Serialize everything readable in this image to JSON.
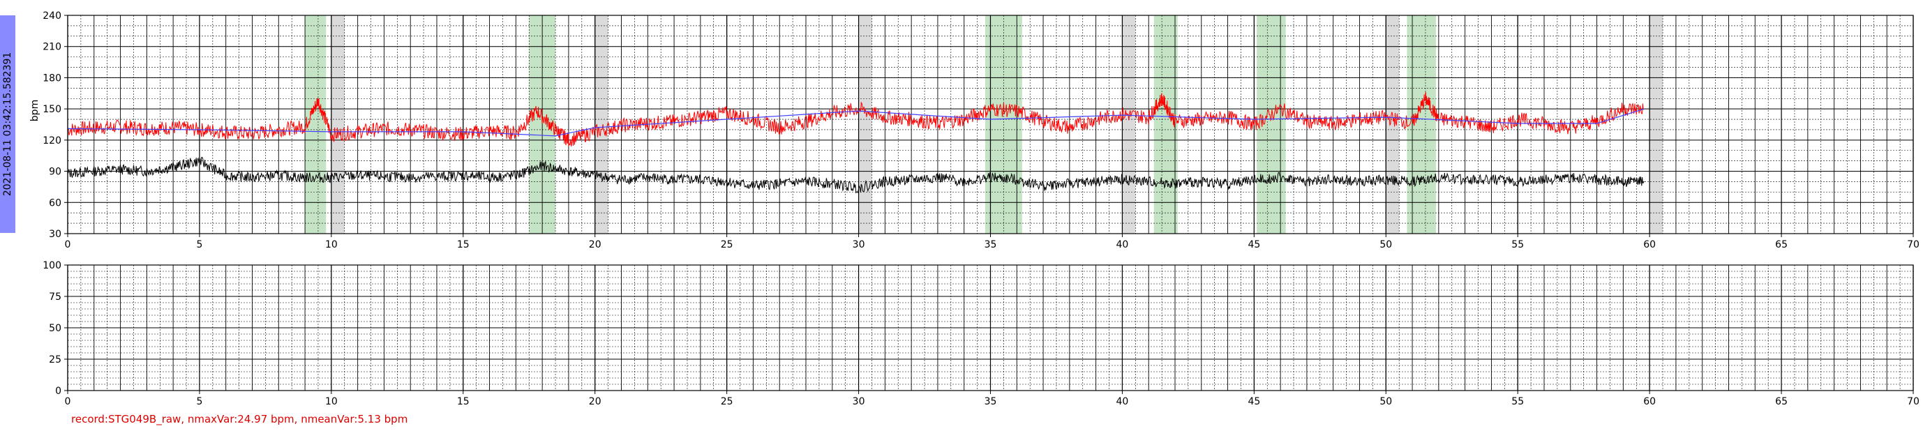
{
  "timestamp_label": "2021-08-11 03:42:15.582391",
  "footer_text": "record:STG049B_raw, nmaxVar:24.97 bpm, nmeanVar:5.13 bpm",
  "colors": {
    "fhr": "#ff0000",
    "mhr": "#000000",
    "baseline": "#4040ff",
    "acceleration": "#2e9e2e",
    "gap": "#999999",
    "side_bar": "#8a8aff",
    "footer": "#e00000"
  },
  "chart_data": [
    {
      "type": "line",
      "ylabel": "bpm",
      "xlim": [
        0,
        70
      ],
      "ylim": [
        30,
        240
      ],
      "xticks": [
        0,
        5,
        10,
        15,
        20,
        25,
        30,
        35,
        40,
        45,
        50,
        55,
        60,
        65,
        70
      ],
      "yticks": [
        30,
        60,
        90,
        120,
        150,
        180,
        210,
        240
      ],
      "grid": true,
      "acceleration_regions": [
        [
          9.0,
          9.8
        ],
        [
          17.5,
          18.5
        ],
        [
          34.8,
          36.2
        ],
        [
          41.2,
          42.1
        ],
        [
          45.1,
          46.2
        ],
        [
          50.8,
          51.9
        ]
      ],
      "gap_regions": [
        [
          10.0,
          10.5
        ],
        [
          20.0,
          20.5
        ],
        [
          30.0,
          30.5
        ],
        [
          40.0,
          40.5
        ],
        [
          50.0,
          50.5
        ],
        [
          60.0,
          60.5
        ]
      ],
      "series": [
        {
          "role": "fhr",
          "color": "#ff0000",
          "x": [
            0,
            1,
            2,
            3,
            4,
            5,
            6,
            7,
            8,
            9,
            9.5,
            10,
            11,
            12,
            13,
            14,
            15,
            16,
            17,
            17.8,
            18.5,
            19,
            20,
            21,
            22,
            23,
            24,
            25,
            26,
            27,
            28,
            29,
            30,
            31,
            32,
            33,
            34,
            35,
            36,
            37,
            38,
            39,
            40,
            41,
            41.5,
            42,
            43,
            44,
            45,
            46,
            47,
            48,
            49,
            50,
            51,
            51.5,
            52,
            53,
            54,
            55,
            56,
            57,
            58,
            59,
            59.8
          ],
          "y": [
            130,
            132,
            133,
            131,
            132,
            130,
            128,
            126,
            130,
            133,
            158,
            125,
            128,
            131,
            130,
            127,
            126,
            129,
            127,
            148,
            130,
            120,
            128,
            134,
            136,
            138,
            142,
            146,
            140,
            132,
            138,
            146,
            150,
            142,
            140,
            136,
            140,
            150,
            148,
            138,
            132,
            140,
            145,
            142,
            160,
            138,
            140,
            142,
            135,
            150,
            138,
            136,
            140,
            142,
            136,
            160,
            140,
            138,
            132,
            140,
            136,
            132,
            138,
            150,
            150
          ]
        },
        {
          "role": "mhr",
          "color": "#000000",
          "x": [
            0,
            1,
            2,
            3,
            4,
            5,
            6,
            7,
            8,
            9,
            10,
            11,
            12,
            13,
            14,
            15,
            16,
            17,
            18,
            19,
            20,
            21,
            22,
            23,
            24,
            25,
            26,
            27,
            28,
            29,
            30,
            31,
            32,
            33,
            34,
            35,
            36,
            37,
            38,
            39,
            40,
            41,
            42,
            43,
            44,
            45,
            46,
            47,
            48,
            49,
            50,
            51,
            52,
            53,
            54,
            55,
            56,
            57,
            58,
            59,
            59.8
          ],
          "y": [
            88,
            90,
            92,
            90,
            94,
            100,
            86,
            84,
            86,
            84,
            84,
            86,
            85,
            84,
            85,
            86,
            84,
            86,
            95,
            90,
            86,
            82,
            84,
            82,
            82,
            80,
            76,
            78,
            80,
            78,
            74,
            80,
            82,
            84,
            80,
            84,
            82,
            76,
            78,
            80,
            82,
            80,
            78,
            80,
            78,
            82,
            84,
            80,
            82,
            80,
            82,
            80,
            84,
            82,
            82,
            80,
            82,
            84,
            82,
            80,
            80
          ]
        },
        {
          "role": "baseline",
          "color": "#4040ff",
          "x": [
            0,
            5,
            10,
            15,
            18.5,
            20,
            25,
            30,
            35,
            40,
            45,
            50,
            55,
            58,
            59.8
          ],
          "y": [
            131,
            130,
            128,
            128,
            124,
            132,
            140,
            148,
            140,
            144,
            140,
            142,
            136,
            136,
            150
          ]
        }
      ]
    },
    {
      "type": "line",
      "xlim": [
        0,
        70
      ],
      "ylim": [
        0,
        100
      ],
      "xticks": [
        0,
        5,
        10,
        15,
        20,
        25,
        30,
        35,
        40,
        45,
        50,
        55,
        60,
        65,
        70
      ],
      "yticks": [
        0,
        25,
        50,
        75,
        100
      ],
      "grid": true,
      "series": []
    }
  ]
}
